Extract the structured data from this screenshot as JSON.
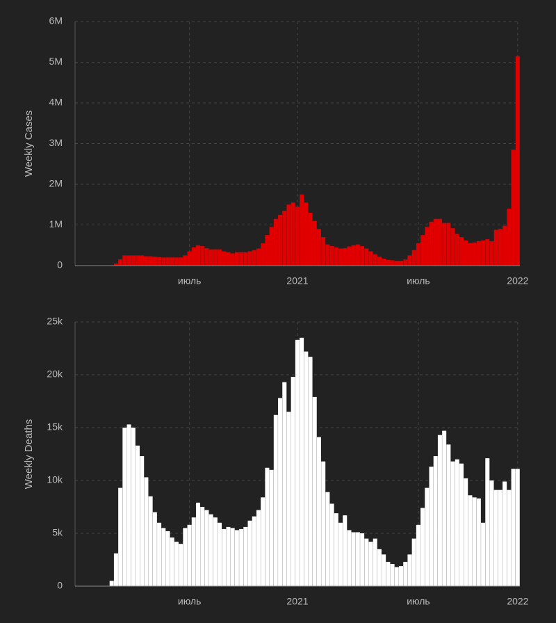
{
  "chart_data": [
    {
      "type": "bar",
      "y_label": "Weekly Cases",
      "color": "#e00000",
      "grid": true,
      "categories": [
        null,
        null,
        null,
        null,
        null,
        null,
        null,
        null,
        null,
        null,
        null,
        null,
        null,
        null,
        null,
        null,
        null,
        null,
        null,
        null,
        null,
        null,
        null,
        null,
        null,
        null,
        "июль",
        null,
        null,
        null,
        null,
        null,
        null,
        null,
        null,
        null,
        null,
        null,
        null,
        null,
        null,
        null,
        null,
        null,
        null,
        null,
        null,
        null,
        null,
        null,
        null,
        "2021",
        null,
        null,
        null,
        null,
        null,
        null,
        null,
        null,
        null,
        null,
        null,
        null,
        null,
        null,
        null,
        null,
        null,
        null,
        null,
        null,
        null,
        null,
        null,
        null,
        null,
        null,
        null,
        "июль",
        null,
        null,
        null,
        null,
        null,
        null,
        null,
        null,
        null,
        null,
        null,
        null,
        null,
        null,
        null,
        null,
        null,
        null,
        null,
        null,
        null,
        null,
        "2022"
      ],
      "values": [
        0,
        0,
        0,
        0,
        0,
        0,
        0,
        0,
        0,
        50000,
        150000,
        250000,
        250000,
        250000,
        250000,
        250000,
        230000,
        230000,
        220000,
        210000,
        200000,
        200000,
        200000,
        200000,
        200000,
        250000,
        350000,
        450000,
        500000,
        480000,
        430000,
        400000,
        400000,
        400000,
        350000,
        330000,
        300000,
        330000,
        330000,
        330000,
        350000,
        380000,
        420000,
        550000,
        750000,
        950000,
        1150000,
        1250000,
        1350000,
        1500000,
        1550000,
        1450000,
        1750000,
        1550000,
        1300000,
        1100000,
        900000,
        700000,
        520000,
        480000,
        450000,
        420000,
        430000,
        470000,
        500000,
        520000,
        480000,
        420000,
        350000,
        280000,
        220000,
        170000,
        140000,
        130000,
        120000,
        120000,
        150000,
        250000,
        380000,
        550000,
        750000,
        950000,
        1080000,
        1150000,
        1150000,
        1050000,
        1050000,
        920000,
        780000,
        700000,
        620000,
        560000,
        570000,
        600000,
        620000,
        650000,
        600000,
        880000,
        900000,
        980000,
        1400000,
        2850000,
        5150000
      ],
      "ylim": [
        0,
        6000000
      ],
      "yticks": [
        0,
        {
          "value": 1000000,
          "label": "1M"
        },
        {
          "value": 2000000,
          "label": "2M"
        },
        {
          "value": 3000000,
          "label": "3M"
        },
        {
          "value": 4000000,
          "label": "4M"
        },
        {
          "value": 5000000,
          "label": "5M"
        },
        {
          "value": 6000000,
          "label": "6M"
        }
      ]
    },
    {
      "type": "bar",
      "y_label": "Weekly Deaths",
      "color": "#ffffff",
      "grid": true,
      "categories": [
        null,
        null,
        null,
        null,
        null,
        null,
        null,
        null,
        null,
        null,
        null,
        null,
        null,
        null,
        null,
        null,
        null,
        null,
        null,
        null,
        null,
        null,
        null,
        null,
        null,
        null,
        "июль",
        null,
        null,
        null,
        null,
        null,
        null,
        null,
        null,
        null,
        null,
        null,
        null,
        null,
        null,
        null,
        null,
        null,
        null,
        null,
        null,
        null,
        null,
        null,
        null,
        "2021",
        null,
        null,
        null,
        null,
        null,
        null,
        null,
        null,
        null,
        null,
        null,
        null,
        null,
        null,
        null,
        null,
        null,
        null,
        null,
        null,
        null,
        null,
        null,
        null,
        null,
        null,
        null,
        "июль",
        null,
        null,
        null,
        null,
        null,
        null,
        null,
        null,
        null,
        null,
        null,
        null,
        null,
        null,
        null,
        null,
        null,
        null,
        null,
        null,
        null,
        null,
        "2022"
      ],
      "values": [
        0,
        0,
        0,
        0,
        0,
        0,
        0,
        0,
        500,
        3100,
        9300,
        15000,
        15300,
        15000,
        13300,
        12300,
        10300,
        8500,
        7000,
        6000,
        5500,
        5200,
        4600,
        4200,
        4000,
        5500,
        5800,
        6500,
        7900,
        7500,
        7200,
        6800,
        6500,
        6000,
        5400,
        5600,
        5500,
        5300,
        5400,
        5600,
        6200,
        6600,
        7200,
        8400,
        11200,
        11000,
        16200,
        17800,
        19300,
        16500,
        19800,
        23300,
        23500,
        22200,
        21700,
        17900,
        14100,
        11800,
        8900,
        7800,
        6900,
        6000,
        6700,
        5300,
        5100,
        5100,
        5000,
        4500,
        4200,
        4500,
        3500,
        3000,
        2300,
        2100,
        1800,
        1900,
        2300,
        3000,
        4500,
        5800,
        7400,
        9300,
        11300,
        12300,
        14300,
        14700,
        13400,
        11800,
        12000,
        11600,
        10200,
        8600,
        8400,
        8300,
        6000,
        12100,
        10000,
        9100,
        9100,
        9900,
        9100,
        11100,
        11100
      ],
      "ylim": [
        0,
        25000
      ],
      "yticks": [
        0,
        {
          "value": 5000,
          "label": "5k"
        },
        {
          "value": 10000,
          "label": "10k"
        },
        {
          "value": 15000,
          "label": "15k"
        },
        {
          "value": 20000,
          "label": "20k"
        },
        {
          "value": 25000,
          "label": "25k"
        }
      ]
    }
  ]
}
